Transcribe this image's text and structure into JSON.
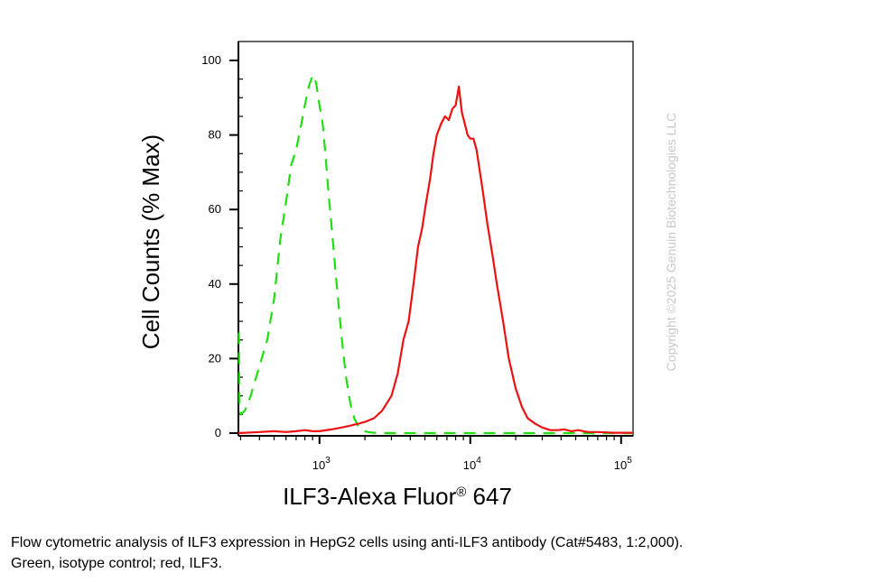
{
  "chart_data": {
    "type": "line",
    "xlabel": "ILF3-Alexa Fluor",
    "xlabel_superscript": "®",
    "xlabel_suffix": " 647",
    "ylabel": "Cell Counts (% Max)",
    "x_scale": "log",
    "xlim": [
      290,
      120000
    ],
    "ylim": [
      0,
      100
    ],
    "y_ticks": [
      0,
      20,
      40,
      60,
      80,
      100
    ],
    "x_ticks": [
      {
        "value": 1000,
        "base": "10",
        "exp": "3"
      },
      {
        "value": 10000,
        "base": "10",
        "exp": "4"
      },
      {
        "value": 100000,
        "base": "10",
        "exp": "5"
      }
    ],
    "grid": false,
    "series": [
      {
        "color": "#22dd11",
        "dash": "dashed",
        "x": [
          292,
          295,
          300,
          320,
          350,
          400,
          450,
          500,
          550,
          600,
          650,
          700,
          750,
          800,
          850,
          900,
          950,
          1000,
          1050,
          1100,
          1150,
          1200,
          1300,
          1400,
          1500,
          1600,
          1700,
          1800,
          1900,
          2000,
          2100,
          2300,
          2600,
          3000,
          5000,
          10000,
          20000,
          50000,
          100000,
          120000
        ],
        "y": [
          27,
          8,
          5,
          6,
          10,
          18,
          25,
          36,
          52,
          62,
          72,
          76,
          82,
          88,
          93,
          96,
          94,
          88,
          83,
          74,
          64,
          56,
          40,
          26,
          15,
          8,
          4,
          2,
          1,
          0.5,
          0.3,
          0.1,
          0,
          0,
          0,
          0,
          0,
          0,
          0,
          0
        ]
      },
      {
        "color": "#ee1111",
        "dash": "solid",
        "x": [
          290,
          400,
          500,
          600,
          700,
          800,
          900,
          1000,
          1200,
          1400,
          1600,
          1800,
          2000,
          2300,
          2600,
          3000,
          3300,
          3600,
          3900,
          4200,
          4500,
          4800,
          5100,
          5400,
          5700,
          6000,
          6400,
          6800,
          7200,
          7600,
          8000,
          8400,
          8800,
          9200,
          9600,
          10000,
          10500,
          11000,
          12000,
          13000,
          14000,
          15000,
          16500,
          18000,
          20000,
          22000,
          24000,
          27000,
          30000,
          34000,
          38000,
          42000,
          47000,
          52000,
          60000,
          70000,
          80000,
          90000,
          100000,
          120000
        ],
        "y": [
          0,
          0.3,
          0.5,
          0.3,
          0.5,
          0.8,
          0.5,
          0.5,
          1,
          1.5,
          2,
          2.5,
          3,
          4,
          6,
          10,
          16,
          25,
          30,
          40,
          50,
          55,
          62,
          68,
          75,
          80,
          83,
          85,
          84,
          87,
          88,
          93,
          86,
          83,
          80,
          79,
          79,
          76,
          66,
          56,
          48,
          40,
          30,
          20,
          12,
          7,
          4,
          2.5,
          1.5,
          0.8,
          0.8,
          1,
          0.5,
          0.8,
          0.3,
          0.3,
          0.2,
          0.1,
          0.1,
          0.1
        ]
      }
    ]
  },
  "copyright": "Copyright ©2025 Genuin Biotechnologies LLC",
  "caption": {
    "line1": "Flow cytometric analysis of ILF3 expression in HepG2 cells using anti-ILF3 antibody (Cat#5483, 1:2,000).",
    "line2": "Green, isotype control; red, ILF3."
  }
}
